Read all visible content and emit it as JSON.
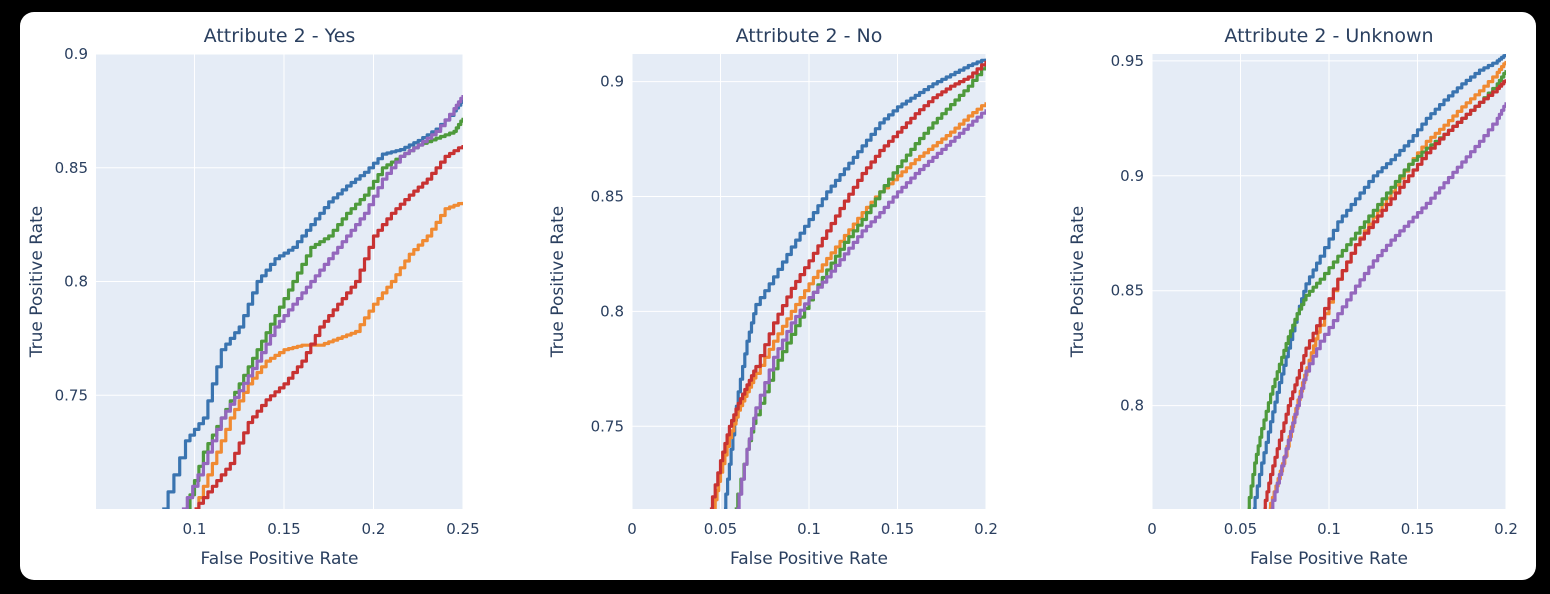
{
  "colors": {
    "page_background": "#000000",
    "panel_background": "#ffffff",
    "plot_background": "#e5ecf6",
    "grid": "#ffffff",
    "text": "#2a3f5f"
  },
  "chart_data": [
    {
      "type": "line",
      "title": "Attribute 2 - Yes",
      "xlabel": "False Positive Rate",
      "ylabel": "True Positive Rate",
      "xlim": [
        0.045,
        0.25
      ],
      "ylim": [
        0.7,
        0.9
      ],
      "xticks": [
        0.1,
        0.15,
        0.2,
        0.25
      ],
      "xtick_labels": [
        "0.1",
        "0.15",
        "0.2",
        "0.25"
      ],
      "yticks": [
        0.75,
        0.8,
        0.85,
        0.9
      ],
      "ytick_labels": [
        "0.75",
        "0.8",
        "0.85",
        "0.9"
      ],
      "grid": true,
      "series": [
        {
          "color": "#3a74b0",
          "x": [
            0.082,
            0.095,
            0.105,
            0.115,
            0.125,
            0.135,
            0.145,
            0.155,
            0.165,
            0.175,
            0.185,
            0.195,
            0.205,
            0.215,
            0.225,
            0.235,
            0.245,
            0.25
          ],
          "y": [
            0.7,
            0.73,
            0.74,
            0.77,
            0.78,
            0.8,
            0.81,
            0.815,
            0.825,
            0.835,
            0.842,
            0.848,
            0.856,
            0.858,
            0.862,
            0.867,
            0.875,
            0.88
          ]
        },
        {
          "color": "#f08a32",
          "x": [
            0.1,
            0.11,
            0.12,
            0.13,
            0.14,
            0.15,
            0.16,
            0.17,
            0.18,
            0.19,
            0.2,
            0.21,
            0.22,
            0.23,
            0.24,
            0.25
          ],
          "y": [
            0.7,
            0.72,
            0.74,
            0.755,
            0.765,
            0.77,
            0.772,
            0.772,
            0.775,
            0.778,
            0.79,
            0.8,
            0.812,
            0.82,
            0.832,
            0.835
          ]
        },
        {
          "color": "#4e9a3c",
          "x": [
            0.095,
            0.105,
            0.115,
            0.125,
            0.135,
            0.145,
            0.155,
            0.165,
            0.175,
            0.185,
            0.195,
            0.205,
            0.215,
            0.225,
            0.235,
            0.245,
            0.25
          ],
          "y": [
            0.7,
            0.725,
            0.74,
            0.755,
            0.77,
            0.785,
            0.8,
            0.815,
            0.82,
            0.83,
            0.838,
            0.85,
            0.855,
            0.86,
            0.863,
            0.866,
            0.872
          ]
        },
        {
          "color": "#c83232",
          "x": [
            0.1,
            0.11,
            0.12,
            0.13,
            0.14,
            0.15,
            0.16,
            0.17,
            0.18,
            0.19,
            0.2,
            0.21,
            0.22,
            0.23,
            0.24,
            0.25
          ],
          "y": [
            0.7,
            0.71,
            0.72,
            0.738,
            0.748,
            0.755,
            0.765,
            0.78,
            0.79,
            0.8,
            0.82,
            0.83,
            0.838,
            0.845,
            0.855,
            0.86
          ]
        },
        {
          "color": "#9467bd",
          "x": [
            0.093,
            0.105,
            0.115,
            0.125,
            0.135,
            0.145,
            0.155,
            0.165,
            0.175,
            0.185,
            0.195,
            0.205,
            0.215,
            0.225,
            0.235,
            0.245,
            0.25
          ],
          "y": [
            0.7,
            0.72,
            0.74,
            0.752,
            0.765,
            0.78,
            0.79,
            0.8,
            0.81,
            0.82,
            0.83,
            0.845,
            0.855,
            0.86,
            0.866,
            0.876,
            0.882
          ]
        }
      ]
    },
    {
      "type": "line",
      "title": "Attribute 2 - No",
      "xlabel": "False Positive Rate",
      "ylabel": "True Positive Rate",
      "xlim": [
        0,
        0.2
      ],
      "ylim": [
        0.714,
        0.912
      ],
      "xticks": [
        0,
        0.05,
        0.1,
        0.15,
        0.2
      ],
      "xtick_labels": [
        "0",
        "0.05",
        "0.1",
        "0.15",
        "0.2"
      ],
      "yticks": [
        0.75,
        0.8,
        0.85,
        0.9
      ],
      "ytick_labels": [
        "0.75",
        "0.8",
        "0.85",
        "0.9"
      ],
      "grid": true,
      "series": [
        {
          "color": "#3a74b0",
          "x": [
            0.052,
            0.056,
            0.06,
            0.065,
            0.07,
            0.08,
            0.09,
            0.1,
            0.11,
            0.12,
            0.13,
            0.14,
            0.15,
            0.16,
            0.17,
            0.18,
            0.19,
            0.2
          ],
          "y": [
            0.714,
            0.74,
            0.765,
            0.787,
            0.803,
            0.815,
            0.828,
            0.84,
            0.852,
            0.862,
            0.872,
            0.882,
            0.889,
            0.894,
            0.899,
            0.903,
            0.907,
            0.91
          ]
        },
        {
          "color": "#f08a32",
          "x": [
            0.046,
            0.05,
            0.055,
            0.06,
            0.065,
            0.07,
            0.08,
            0.09,
            0.1,
            0.11,
            0.12,
            0.13,
            0.14,
            0.15,
            0.16,
            0.17,
            0.18,
            0.19,
            0.2
          ],
          "y": [
            0.714,
            0.73,
            0.745,
            0.757,
            0.765,
            0.773,
            0.787,
            0.8,
            0.812,
            0.823,
            0.833,
            0.843,
            0.852,
            0.859,
            0.866,
            0.872,
            0.878,
            0.885,
            0.891
          ]
        },
        {
          "color": "#4e9a3c",
          "x": [
            0.058,
            0.065,
            0.07,
            0.08,
            0.09,
            0.1,
            0.11,
            0.12,
            0.13,
            0.14,
            0.15,
            0.16,
            0.17,
            0.18,
            0.19,
            0.2
          ],
          "y": [
            0.714,
            0.74,
            0.755,
            0.775,
            0.79,
            0.805,
            0.818,
            0.83,
            0.84,
            0.852,
            0.863,
            0.873,
            0.882,
            0.89,
            0.898,
            0.908
          ]
        },
        {
          "color": "#c83232",
          "x": [
            0.044,
            0.05,
            0.055,
            0.06,
            0.065,
            0.07,
            0.08,
            0.09,
            0.1,
            0.11,
            0.12,
            0.13,
            0.14,
            0.15,
            0.16,
            0.17,
            0.18,
            0.19,
            0.2
          ],
          "y": [
            0.714,
            0.735,
            0.75,
            0.76,
            0.768,
            0.776,
            0.795,
            0.81,
            0.822,
            0.835,
            0.848,
            0.86,
            0.87,
            0.878,
            0.886,
            0.893,
            0.898,
            0.902,
            0.909
          ]
        },
        {
          "color": "#9467bd",
          "x": [
            0.059,
            0.065,
            0.07,
            0.08,
            0.09,
            0.1,
            0.11,
            0.12,
            0.13,
            0.14,
            0.15,
            0.16,
            0.17,
            0.18,
            0.19,
            0.2
          ],
          "y": [
            0.714,
            0.74,
            0.758,
            0.78,
            0.795,
            0.806,
            0.815,
            0.825,
            0.835,
            0.843,
            0.852,
            0.86,
            0.867,
            0.874,
            0.881,
            0.888
          ]
        }
      ]
    },
    {
      "type": "line",
      "title": "Attribute 2 - Unknown",
      "xlabel": "False Positive Rate",
      "ylabel": "True Positive Rate",
      "xlim": [
        0,
        0.2
      ],
      "ylim": [
        0.755,
        0.953
      ],
      "xticks": [
        0,
        0.05,
        0.1,
        0.15,
        0.2
      ],
      "xtick_labels": [
        "0",
        "0.05",
        "0.1",
        "0.15",
        "0.2"
      ],
      "yticks": [
        0.8,
        0.85,
        0.9,
        0.95
      ],
      "ytick_labels": [
        "0.8",
        "0.85",
        "0.9",
        "0.95"
      ],
      "grid": true,
      "series": [
        {
          "color": "#3a74b0",
          "x": [
            0.057,
            0.062,
            0.067,
            0.072,
            0.077,
            0.082,
            0.087,
            0.095,
            0.105,
            0.115,
            0.125,
            0.135,
            0.145,
            0.155,
            0.165,
            0.175,
            0.185,
            0.195,
            0.2
          ],
          "y": [
            0.755,
            0.775,
            0.793,
            0.81,
            0.825,
            0.84,
            0.853,
            0.865,
            0.88,
            0.89,
            0.9,
            0.907,
            0.915,
            0.925,
            0.933,
            0.94,
            0.946,
            0.95,
            0.953
          ]
        },
        {
          "color": "#f08a32",
          "x": [
            0.066,
            0.07,
            0.075,
            0.08,
            0.085,
            0.09,
            0.095,
            0.105,
            0.115,
            0.125,
            0.135,
            0.145,
            0.155,
            0.165,
            0.175,
            0.185,
            0.195,
            0.2
          ],
          "y": [
            0.755,
            0.765,
            0.778,
            0.795,
            0.81,
            0.823,
            0.835,
            0.855,
            0.87,
            0.882,
            0.893,
            0.905,
            0.915,
            0.922,
            0.93,
            0.937,
            0.945,
            0.95
          ]
        },
        {
          "color": "#4e9a3c",
          "x": [
            0.054,
            0.058,
            0.062,
            0.067,
            0.072,
            0.077,
            0.082,
            0.087,
            0.095,
            0.105,
            0.115,
            0.125,
            0.135,
            0.145,
            0.155,
            0.165,
            0.175,
            0.185,
            0.195,
            0.2
          ],
          "y": [
            0.755,
            0.775,
            0.79,
            0.805,
            0.818,
            0.83,
            0.84,
            0.848,
            0.855,
            0.865,
            0.875,
            0.885,
            0.895,
            0.905,
            0.912,
            0.918,
            0.925,
            0.932,
            0.94,
            0.946
          ]
        },
        {
          "color": "#c83232",
          "x": [
            0.063,
            0.067,
            0.072,
            0.077,
            0.082,
            0.087,
            0.095,
            0.105,
            0.115,
            0.125,
            0.135,
            0.145,
            0.155,
            0.165,
            0.175,
            0.185,
            0.195,
            0.2
          ],
          "y": [
            0.755,
            0.77,
            0.785,
            0.8,
            0.812,
            0.825,
            0.838,
            0.855,
            0.87,
            0.88,
            0.89,
            0.9,
            0.91,
            0.918,
            0.925,
            0.932,
            0.938,
            0.942
          ]
        },
        {
          "color": "#9467bd",
          "x": [
            0.067,
            0.072,
            0.077,
            0.082,
            0.087,
            0.095,
            0.105,
            0.115,
            0.125,
            0.135,
            0.145,
            0.155,
            0.165,
            0.175,
            0.185,
            0.195,
            0.2
          ],
          "y": [
            0.755,
            0.77,
            0.785,
            0.8,
            0.815,
            0.828,
            0.84,
            0.852,
            0.863,
            0.872,
            0.88,
            0.888,
            0.897,
            0.906,
            0.915,
            0.925,
            0.932
          ]
        }
      ]
    }
  ]
}
